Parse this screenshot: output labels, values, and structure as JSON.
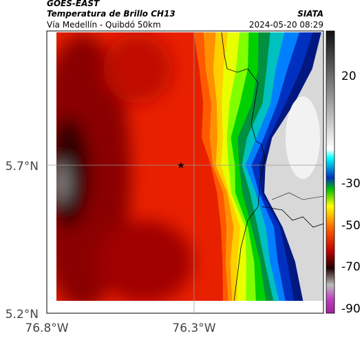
{
  "header": {
    "source": "GOES-EAST",
    "title": "Temperatura de Brillo CH13",
    "subtitle": "Vía Medellín - Quibdó 50km",
    "brand": "SIATA",
    "datetime": "2024-05-20 08:29"
  },
  "axes": {
    "y_ticks": [
      "5.7°N",
      "5.2°N"
    ],
    "x_ticks": [
      "76.8°W",
      "76.3°W"
    ]
  },
  "colorbar": {
    "ticks": [
      20,
      -30,
      -50,
      -70,
      -90
    ]
  }
}
